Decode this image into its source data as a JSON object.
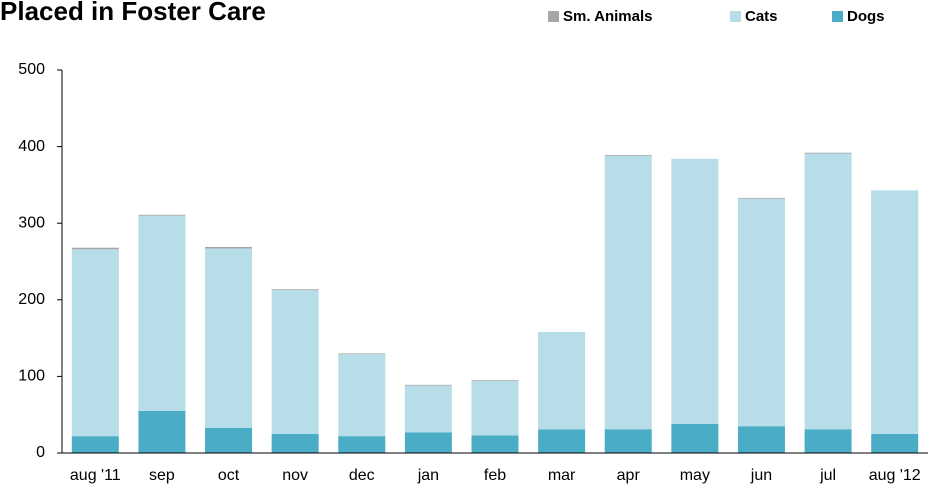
{
  "chart_data": {
    "type": "stacked_bar",
    "title": "Placed in Foster Care",
    "categories": [
      "aug '11",
      "sep",
      "oct",
      "nov",
      "dec",
      "jan",
      "feb",
      "mar",
      "apr",
      "may",
      "jun",
      "jul",
      "aug '12"
    ],
    "series": [
      {
        "name": "Dogs",
        "color": "#4bacc6",
        "values": [
          22,
          55,
          33,
          25,
          22,
          27,
          23,
          31,
          31,
          38,
          35,
          31,
          25
        ]
      },
      {
        "name": "Cats",
        "color": "#b7dde8",
        "values": [
          244,
          255,
          234,
          188,
          107,
          61,
          71,
          127,
          357,
          346,
          297,
          360,
          318
        ]
      },
      {
        "name": "Sm. Animals",
        "color": "#a6a6a6",
        "values": [
          2,
          1,
          2,
          1,
          1,
          1,
          1,
          0,
          1,
          0,
          1,
          1,
          0
        ]
      }
    ],
    "ylim": [
      0,
      500
    ],
    "yticks": [
      0,
      100,
      200,
      300,
      400,
      500
    ]
  }
}
